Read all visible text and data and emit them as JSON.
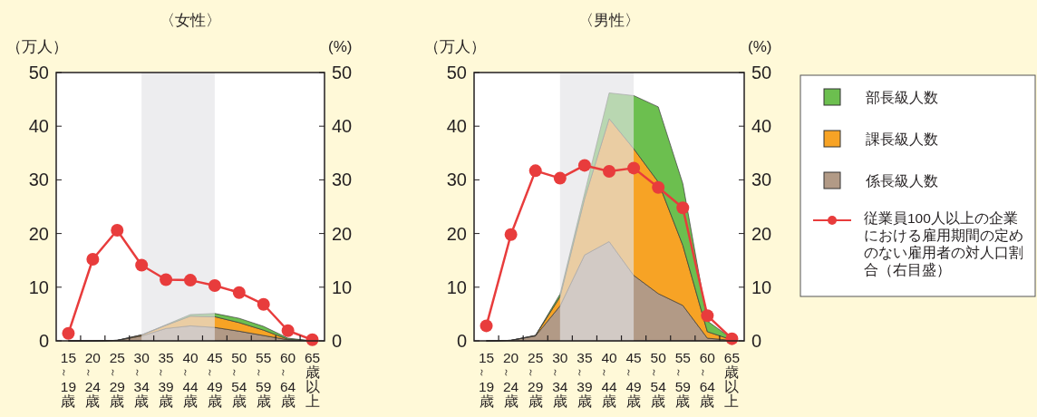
{
  "chart_data": [
    {
      "type": "area",
      "title": "〈女性〉",
      "ylabel": "（万人）",
      "y2label": "(%)",
      "stacked": true,
      "grid": false,
      "legend": false,
      "categories": [
        "15～19歳",
        "20～24歳",
        "25～29歳",
        "30～34歳",
        "35～39歳",
        "40～44歳",
        "45～49歳",
        "50～54歳",
        "55～59歳",
        "60～64歳",
        "65歳以上"
      ],
      "ylim": [
        0,
        50
      ],
      "yticks": [
        0,
        10,
        20,
        30,
        40,
        50
      ],
      "y2lim": [
        0,
        50
      ],
      "y2ticks": [
        0,
        10,
        20,
        30,
        40,
        50
      ],
      "bands": [
        {
          "axis": "x",
          "from": "30～34歳",
          "to": "45～49歳",
          "color": "#e3e4e6"
        }
      ],
      "series": [
        {
          "color": "#b29a86",
          "values": [
            0,
            0,
            0.1,
            0.9,
            2.3,
            2.8,
            2.5,
            1.8,
            1.0,
            0.2,
            0
          ]
        },
        {
          "color": "#f7a325",
          "values": [
            0,
            0,
            0,
            0.2,
            0.6,
            1.8,
            2.0,
            1.6,
            1.0,
            0.1,
            0
          ]
        },
        {
          "color": "#6cbf4f",
          "values": [
            0,
            0,
            0,
            0,
            0.1,
            0.3,
            0.6,
            0.8,
            0.7,
            0.2,
            0
          ]
        },
        {
          "type": "line",
          "marker": "circle",
          "line_style": "solid",
          "color": "#e83c3c",
          "values": [
            1.4,
            15.2,
            20.6,
            14.1,
            11.4,
            11.3,
            10.3,
            9.0,
            6.8,
            1.9,
            0.2
          ]
        }
      ]
    },
    {
      "type": "area",
      "title": "〈男性〉",
      "ylabel": "（万人）",
      "y2label": "(%)",
      "stacked": true,
      "grid": false,
      "legend": "right",
      "categories": [
        "15～19歳",
        "20～24歳",
        "25～29歳",
        "30～34歳",
        "35～39歳",
        "40～44歳",
        "45～49歳",
        "50～54歳",
        "55～59歳",
        "60～64歳",
        "65歳以上"
      ],
      "ylim": [
        0,
        50
      ],
      "yticks": [
        0,
        10,
        20,
        30,
        40,
        50
      ],
      "y2lim": [
        0,
        50
      ],
      "y2ticks": [
        0,
        10,
        20,
        30,
        40,
        50
      ],
      "bands": [
        {
          "axis": "x",
          "from": "30～34歳",
          "to": "45～49歳",
          "color": "#e3e4e6"
        }
      ],
      "series": [
        {
          "name": "係長級人数",
          "color": "#b29a86",
          "values": [
            0,
            0.1,
            0.9,
            6.5,
            16,
            18.5,
            12.2,
            8.8,
            6.6,
            0.5,
            0.1
          ]
        },
        {
          "name": "課長級人数",
          "color": "#f7a325",
          "values": [
            0,
            0,
            0.1,
            1.7,
            10.5,
            22.9,
            23.6,
            20.8,
            11.2,
            1.2,
            0.1
          ]
        },
        {
          "name": "部長級人数",
          "color": "#6cbf4f",
          "values": [
            0,
            0,
            0,
            0.5,
            1,
            4.8,
            9.9,
            14,
            11.5,
            2,
            0.2
          ]
        },
        {
          "name": "従業員100人以上の企業における雇用期間の定めのない雇用者の対人口割合（右目盛）",
          "type": "line",
          "marker": "circle",
          "line_style": "solid",
          "color": "#e83c3c",
          "values": [
            2.8,
            19.8,
            31.7,
            30.3,
            32.7,
            31.6,
            32.2,
            28.6,
            24.8,
            4.7,
            0.4
          ]
        }
      ]
    }
  ]
}
